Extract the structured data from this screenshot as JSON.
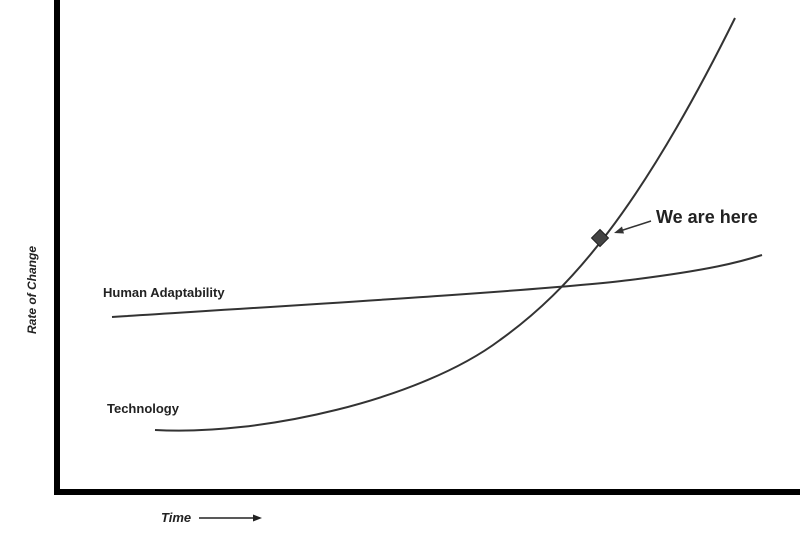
{
  "axes": {
    "y_label": "Rate of Change",
    "x_label": "Time"
  },
  "curves": [
    {
      "label": "Human Adaptability"
    },
    {
      "label": "Technology"
    }
  ],
  "annotation": "We are here"
}
